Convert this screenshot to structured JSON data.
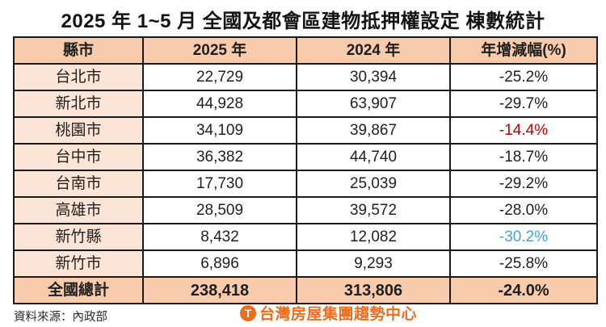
{
  "title": "2025 年 1~5 月 全國及都會區建物抵押權設定 棟數統計",
  "table": {
    "headers": [
      "縣市",
      "2025 年",
      "2024 年",
      "年增減幅(%)"
    ],
    "rows": [
      {
        "city": "台北市",
        "y2025": "22,729",
        "y2024": "30,394",
        "change": "-25.2%",
        "change_tone": "normal"
      },
      {
        "city": "新北市",
        "y2025": "44,928",
        "y2024": "63,907",
        "change": "-29.7%",
        "change_tone": "normal"
      },
      {
        "city": "桃園市",
        "y2025": "34,109",
        "y2024": "39,867",
        "change": "-14.4%",
        "change_tone": "red"
      },
      {
        "city": "台中市",
        "y2025": "36,382",
        "y2024": "44,740",
        "change": "-18.7%",
        "change_tone": "normal"
      },
      {
        "city": "台南市",
        "y2025": "17,730",
        "y2024": "25,039",
        "change": "-29.2%",
        "change_tone": "normal"
      },
      {
        "city": "高雄市",
        "y2025": "28,509",
        "y2024": "39,572",
        "change": "-28.0%",
        "change_tone": "normal"
      },
      {
        "city": "新竹縣",
        "y2025": "8,432",
        "y2024": "12,082",
        "change": "-30.2%",
        "change_tone": "blue"
      },
      {
        "city": "新竹市",
        "y2025": "6,896",
        "y2024": "9,293",
        "change": "-25.8%",
        "change_tone": "normal"
      }
    ],
    "total": {
      "city": "全國總計",
      "y2025": "238,418",
      "y2024": "313,806",
      "change": "-24.0%",
      "change_tone": "normal"
    }
  },
  "footer": {
    "source": "資料來源：內政部",
    "logo_text": "台灣房屋集團趨勢中心",
    "logo_glyph": "T"
  },
  "colors": {
    "header_bg": "#F8CBAD",
    "label_bg": "#FCE4D6",
    "border": "#1a1a1a",
    "highlight_red": "#C00000",
    "highlight_blue": "#3FA6DB",
    "logo_orange": "#ED6C1E"
  },
  "chart_data": {
    "type": "table",
    "title": "2025 年 1~5 月 全國及都會區建物抵押權設定 棟數統計",
    "columns": [
      "縣市",
      "2025 年",
      "2024 年",
      "年增減幅(%)"
    ],
    "rows": [
      [
        "台北市",
        22729,
        30394,
        -25.2
      ],
      [
        "新北市",
        44928,
        63907,
        -29.7
      ],
      [
        "桃園市",
        34109,
        39867,
        -14.4
      ],
      [
        "台中市",
        36382,
        44740,
        -18.7
      ],
      [
        "台南市",
        17730,
        25039,
        -29.2
      ],
      [
        "高雄市",
        28509,
        39572,
        -28.0
      ],
      [
        "新竹縣",
        8432,
        12082,
        -30.2
      ],
      [
        "新竹市",
        6896,
        9293,
        -25.8
      ],
      [
        "全國總計",
        238418,
        313806,
        -24.0
      ]
    ],
    "annotations": {
      "red_highlight_row": "桃園市 (smallest decline -14.4%)",
      "blue_highlight_row": "新竹縣 (largest decline -30.2%)"
    },
    "source": "內政部"
  }
}
